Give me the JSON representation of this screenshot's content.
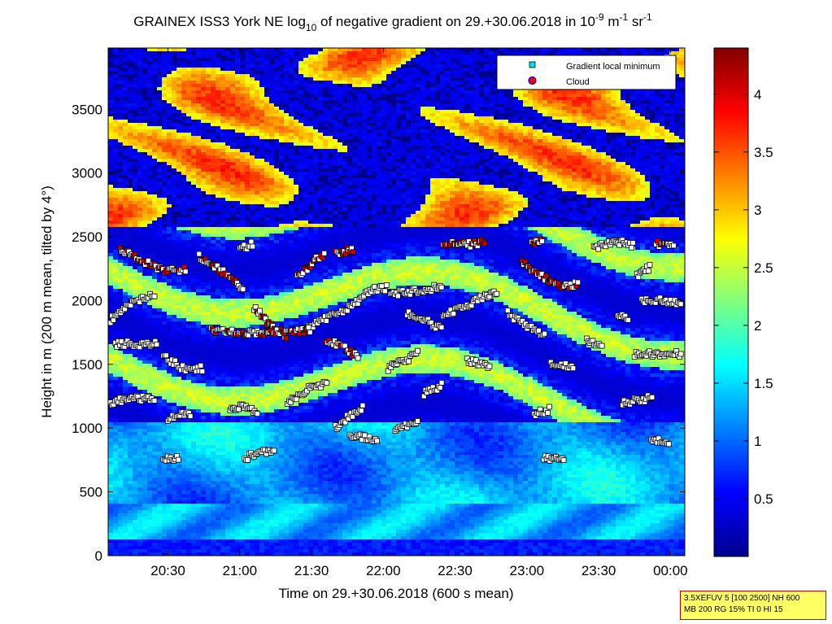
{
  "chart_data": {
    "type": "heatmap",
    "title": {
      "main": "GRAINEX ISS3 York NE log",
      "sub1": "10",
      "mid": " of negative gradient on 29.+30.06.2018 in 10",
      "sup1": "-9",
      "unit1": " m",
      "sup2": "-1",
      "unit2": " sr",
      "sup3": "-1"
    },
    "xlabel": "Time on 29.+30.06.2018 (600 s mean)",
    "ylabel": "Height in m (200 m mean, tilted by 4°)",
    "x_range_minutes": [
      1205,
      1446
    ],
    "x_ticks": [
      {
        "label": "20:30",
        "minute": 1230
      },
      {
        "label": "21:00",
        "minute": 1260
      },
      {
        "label": "21:30",
        "minute": 1290
      },
      {
        "label": "22:00",
        "minute": 1320
      },
      {
        "label": "22:30",
        "minute": 1350
      },
      {
        "label": "23:00",
        "minute": 1380
      },
      {
        "label": "23:30",
        "minute": 1410
      },
      {
        "label": "00:00",
        "minute": 1440
      }
    ],
    "ylim": [
      0,
      3980
    ],
    "y_ticks": [
      0,
      500,
      1000,
      1500,
      2000,
      2500,
      3000,
      3500
    ],
    "colorbar": {
      "range": [
        0,
        4.4
      ],
      "ticks": [
        "0.5",
        "1",
        "1.5",
        "2",
        "2.5",
        "3",
        "3.5",
        "4"
      ],
      "tick_values": [
        0.5,
        1,
        1.5,
        2,
        2.5,
        3,
        3.5,
        4
      ],
      "colormap": "jet"
    },
    "legend": {
      "placement": "top-right",
      "entries": [
        {
          "label": "Gradient local minimum",
          "marker": "square",
          "color": "#00e0ff"
        },
        {
          "label": "Cloud",
          "marker": "circle",
          "color": "#ff0000"
        }
      ]
    },
    "minimum_layers": [
      {
        "points": [
          [
            1206,
            1850
          ],
          [
            1212,
            1950
          ],
          [
            1220,
            2030
          ],
          [
            1225,
            2030
          ]
        ]
      },
      {
        "points": [
          [
            1210,
            2400
          ],
          [
            1218,
            2320
          ],
          [
            1228,
            2240
          ],
          [
            1238,
            2240
          ]
        ],
        "cloud": true
      },
      {
        "points": [
          [
            1243,
            2350
          ],
          [
            1250,
            2260
          ],
          [
            1257,
            2170
          ],
          [
            1262,
            2060
          ]
        ],
        "cloud": true
      },
      {
        "points": [
          [
            1260,
            2400
          ],
          [
            1266,
            2450
          ]
        ]
      },
      {
        "points": [
          [
            1266,
            1950
          ],
          [
            1272,
            1820
          ],
          [
            1280,
            1720
          ]
        ],
        "cloud": true
      },
      {
        "points": [
          [
            1284,
            2180
          ],
          [
            1292,
            2320
          ],
          [
            1296,
            2380
          ]
        ],
        "cloud": true
      },
      {
        "points": [
          [
            1300,
            2370
          ],
          [
            1308,
            2400
          ]
        ],
        "cloud": true
      },
      {
        "points": [
          [
            1285,
            1760
          ],
          [
            1295,
            1850
          ],
          [
            1305,
            1930
          ],
          [
            1315,
            2080
          ],
          [
            1322,
            2100
          ]
        ]
      },
      {
        "points": [
          [
            1323,
            2050
          ],
          [
            1335,
            2080
          ],
          [
            1345,
            2110
          ]
        ]
      },
      {
        "points": [
          [
            1345,
            2450
          ],
          [
            1357,
            2440
          ],
          [
            1363,
            2460
          ]
        ],
        "cloud": true
      },
      {
        "points": [
          [
            1345,
            1880
          ],
          [
            1355,
            1960
          ],
          [
            1362,
            2030
          ],
          [
            1368,
            2060
          ]
        ]
      },
      {
        "points": [
          [
            1378,
            2300
          ],
          [
            1385,
            2200
          ],
          [
            1395,
            2100
          ],
          [
            1402,
            2140
          ]
        ],
        "cloud": true
      },
      {
        "points": [
          [
            1382,
            2440
          ],
          [
            1387,
            2470
          ]
        ],
        "cloud": true
      },
      {
        "points": [
          [
            1408,
            2420
          ],
          [
            1418,
            2460
          ],
          [
            1425,
            2430
          ]
        ]
      },
      {
        "points": [
          [
            1426,
            2200
          ],
          [
            1432,
            2270
          ]
        ]
      },
      {
        "points": [
          [
            1434,
            2450
          ],
          [
            1442,
            2420
          ]
        ],
        "cloud": true
      },
      {
        "points": [
          [
            1428,
            1990
          ],
          [
            1437,
            2000
          ],
          [
            1445,
            1970
          ]
        ]
      },
      {
        "points": [
          [
            1208,
            1660
          ],
          [
            1222,
            1660
          ],
          [
            1226,
            1680
          ]
        ]
      },
      {
        "points": [
          [
            1228,
            1560
          ],
          [
            1238,
            1450
          ],
          [
            1245,
            1470
          ]
        ]
      },
      {
        "points": [
          [
            1248,
            1760
          ],
          [
            1258,
            1750
          ],
          [
            1268,
            1740
          ],
          [
            1278,
            1760
          ],
          [
            1290,
            1770
          ]
        ],
        "cloud": true
      },
      {
        "points": [
          [
            1296,
            1700
          ],
          [
            1304,
            1620
          ],
          [
            1310,
            1560
          ]
        ],
        "cloud": true
      },
      {
        "points": [
          [
            1322,
            1470
          ],
          [
            1330,
            1540
          ],
          [
            1335,
            1600
          ]
        ]
      },
      {
        "points": [
          [
            1330,
            1900
          ],
          [
            1340,
            1820
          ],
          [
            1345,
            1770
          ]
        ]
      },
      {
        "points": [
          [
            1372,
            1900
          ],
          [
            1382,
            1780
          ],
          [
            1388,
            1720
          ]
        ]
      },
      {
        "points": [
          [
            1390,
            1500
          ],
          [
            1400,
            1480
          ]
        ]
      },
      {
        "points": [
          [
            1405,
            1700
          ],
          [
            1412,
            1640
          ]
        ]
      },
      {
        "points": [
          [
            1418,
            1880
          ],
          [
            1423,
            1850
          ]
        ]
      },
      {
        "points": [
          [
            1425,
            1580
          ],
          [
            1445,
            1580
          ]
        ]
      },
      {
        "points": [
          [
            1206,
            1200
          ],
          [
            1215,
            1240
          ],
          [
            1225,
            1220
          ]
        ]
      },
      {
        "points": [
          [
            1230,
            1080
          ],
          [
            1240,
            1120
          ]
        ]
      },
      {
        "points": [
          [
            1256,
            1140
          ],
          [
            1262,
            1180
          ],
          [
            1268,
            1120
          ]
        ]
      },
      {
        "points": [
          [
            1280,
            1200
          ],
          [
            1290,
            1320
          ],
          [
            1297,
            1350
          ]
        ]
      },
      {
        "points": [
          [
            1300,
            1000
          ],
          [
            1306,
            1100
          ],
          [
            1312,
            1160
          ]
        ]
      },
      {
        "points": [
          [
            1325,
            1000
          ],
          [
            1335,
            1040
          ]
        ]
      },
      {
        "points": [
          [
            1337,
            1270
          ],
          [
            1345,
            1340
          ]
        ]
      },
      {
        "points": [
          [
            1355,
            1530
          ],
          [
            1365,
            1480
          ]
        ]
      },
      {
        "points": [
          [
            1383,
            1110
          ],
          [
            1390,
            1150
          ]
        ]
      },
      {
        "points": [
          [
            1420,
            1200
          ],
          [
            1433,
            1240
          ]
        ]
      },
      {
        "points": [
          [
            1306,
            950
          ],
          [
            1318,
            900
          ]
        ]
      },
      {
        "points": [
          [
            1262,
            760
          ],
          [
            1266,
            800
          ],
          [
            1275,
            820
          ]
        ]
      },
      {
        "points": [
          [
            1228,
            760
          ],
          [
            1235,
            760
          ]
        ]
      },
      {
        "points": [
          [
            1387,
            760
          ],
          [
            1396,
            760
          ]
        ]
      },
      {
        "points": [
          [
            1432,
            900
          ],
          [
            1440,
            900
          ]
        ]
      }
    ]
  },
  "info_box": {
    "line1": "3.5XEFUV 5 [100 2500] NH 600",
    "line2": "MB 200 RG 15% TI 0 HI 15"
  }
}
